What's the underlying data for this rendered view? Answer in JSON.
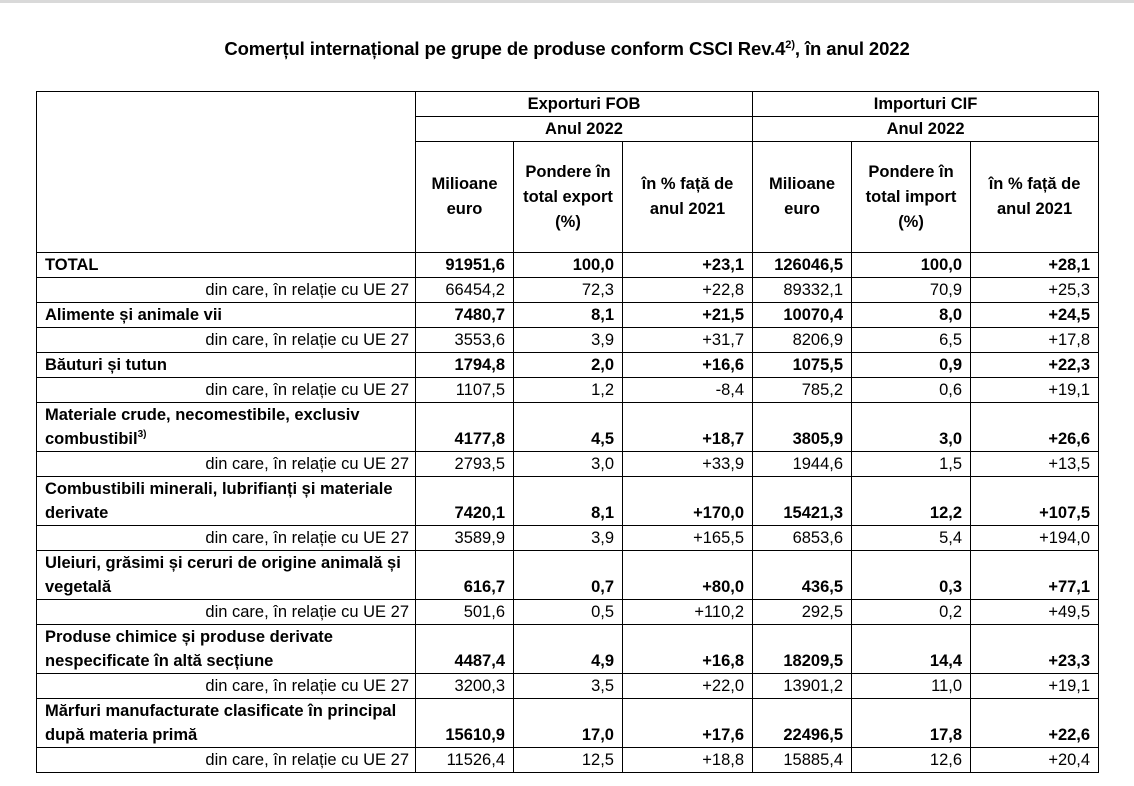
{
  "title": {
    "text": "Comerțul internațional pe grupe de produse conform CSCI Rev.4",
    "sup": "2)",
    "suffix": ", în anul 2022"
  },
  "headers": {
    "export_group": "Exporturi FOB",
    "import_group": "Importuri CIF",
    "year_export": "Anul 2022",
    "year_import": "Anul 2022",
    "col_mil_export": "Milioane euro",
    "col_share_export": "Pondere în total export (%)",
    "col_pct_export": "în % față de anul 2021",
    "col_mil_import": "Milioane euro",
    "col_share_import": "Pondere în total import (%)",
    "col_pct_import": "în % față de anul 2021"
  },
  "rows": [
    {
      "label": "TOTAL",
      "sup": "",
      "type": "main",
      "values": [
        "91951,6",
        "100,0",
        "+23,1",
        "126046,5",
        "100,0",
        "+28,1"
      ]
    },
    {
      "label": "din care, în relație cu UE 27",
      "sup": "",
      "type": "sub",
      "values": [
        "66454,2",
        "72,3",
        "+22,8",
        "89332,1",
        "70,9",
        "+25,3"
      ]
    },
    {
      "label": "Alimente și animale vii",
      "sup": "",
      "type": "main",
      "values": [
        "7480,7",
        "8,1",
        "+21,5",
        "10070,4",
        "8,0",
        "+24,5"
      ]
    },
    {
      "label": "din care, în relație cu UE 27",
      "sup": "",
      "type": "sub",
      "values": [
        "3553,6",
        "3,9",
        "+31,7",
        "8206,9",
        "6,5",
        "+17,8"
      ]
    },
    {
      "label": "Băuturi și tutun",
      "sup": "",
      "type": "main",
      "values": [
        "1794,8",
        "2,0",
        "+16,6",
        "1075,5",
        "0,9",
        "+22,3"
      ]
    },
    {
      "label": "din care, în relație cu UE 27",
      "sup": "",
      "type": "sub",
      "values": [
        "1107,5",
        "1,2",
        "-8,4",
        "785,2",
        "0,6",
        "+19,1"
      ]
    },
    {
      "label": "Materiale crude, necomestibile, exclusiv combustibil",
      "sup": "3)",
      "type": "main-tall",
      "values": [
        "4177,8",
        "4,5",
        "+18,7",
        "3805,9",
        "3,0",
        "+26,6"
      ]
    },
    {
      "label": "din care, în relație cu UE 27",
      "sup": "",
      "type": "sub",
      "values": [
        "2793,5",
        "3,0",
        "+33,9",
        "1944,6",
        "1,5",
        "+13,5"
      ]
    },
    {
      "label": "Combustibili minerali, lubrifianți și materiale derivate",
      "sup": "",
      "type": "main-tall",
      "values": [
        "7420,1",
        "8,1",
        "+170,0",
        "15421,3",
        "12,2",
        "+107,5"
      ]
    },
    {
      "label": "din care, în relație cu UE 27",
      "sup": "",
      "type": "sub",
      "values": [
        "3589,9",
        "3,9",
        "+165,5",
        "6853,6",
        "5,4",
        "+194,0"
      ]
    },
    {
      "label": "Uleiuri, grăsimi și ceruri de origine animală și vegetală",
      "sup": "",
      "type": "main-tall",
      "values": [
        "616,7",
        "0,7",
        "+80,0",
        "436,5",
        "0,3",
        "+77,1"
      ]
    },
    {
      "label": "din care, în relație cu UE 27",
      "sup": "",
      "type": "sub",
      "values": [
        "501,6",
        "0,5",
        "+110,2",
        "292,5",
        "0,2",
        "+49,5"
      ]
    },
    {
      "label": "Produse chimice și produse derivate nespecificate în altă secțiune",
      "sup": "",
      "type": "main-tall",
      "values": [
        "4487,4",
        "4,9",
        "+16,8",
        "18209,5",
        "14,4",
        "+23,3"
      ]
    },
    {
      "label": "din care, în relație cu UE 27",
      "sup": "",
      "type": "sub",
      "values": [
        "3200,3",
        "3,5",
        "+22,0",
        "13901,2",
        "11,0",
        "+19,1"
      ]
    },
    {
      "label": "Mărfuri manufacturate clasificate în principal după materia primă",
      "sup": "",
      "type": "main-tall",
      "values": [
        "15610,9",
        "17,0",
        "+17,6",
        "22496,5",
        "17,8",
        "+22,6"
      ]
    },
    {
      "label": "din care, în relație cu UE 27",
      "sup": "",
      "type": "sub",
      "values": [
        "11526,4",
        "12,5",
        "+18,8",
        "15885,4",
        "12,6",
        "+20,4"
      ]
    }
  ]
}
